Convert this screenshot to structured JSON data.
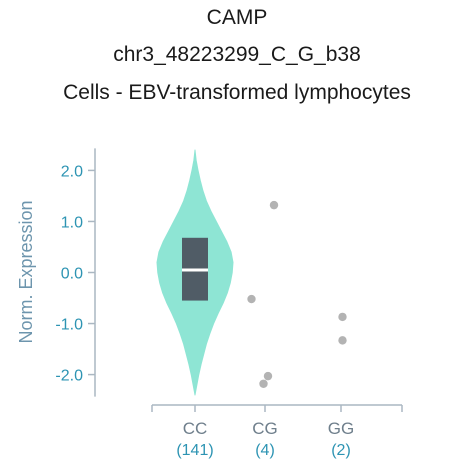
{
  "chart_data": {
    "type": "violin",
    "title_lines": [
      "CAMP",
      "chr3_48223299_C_G_b38",
      "Cells - EBV-transformed lymphocytes"
    ],
    "ylabel": "Norm. Expression",
    "ylim": [
      -2.4,
      2.4
    ],
    "yticks": [
      {
        "value": 2.0,
        "label": "2.0"
      },
      {
        "value": 1.0,
        "label": "1.0"
      },
      {
        "value": 0.0,
        "label": "0.0"
      },
      {
        "value": -1.0,
        "label": "-1.0"
      },
      {
        "value": -2.0,
        "label": "-2.0"
      }
    ],
    "colors": {
      "violin": "#8ee5d4",
      "box": "#505c66",
      "median": "#ffffff",
      "points": "#b3b3b3",
      "axis": "#aab7c2"
    },
    "groups": [
      {
        "label": "CC",
        "count_label": "(141)",
        "violin": {
          "min": -2.4,
          "max": 2.4,
          "profile": [
            [
              2.4,
              0.0
            ],
            [
              2.2,
              0.03
            ],
            [
              2.0,
              0.08
            ],
            [
              1.8,
              0.14
            ],
            [
              1.6,
              0.21
            ],
            [
              1.4,
              0.3
            ],
            [
              1.2,
              0.42
            ],
            [
              1.0,
              0.56
            ],
            [
              0.8,
              0.7
            ],
            [
              0.6,
              0.84
            ],
            [
              0.4,
              0.95
            ],
            [
              0.2,
              1.0
            ],
            [
              0.0,
              0.98
            ],
            [
              -0.2,
              0.93
            ],
            [
              -0.4,
              0.85
            ],
            [
              -0.6,
              0.74
            ],
            [
              -0.8,
              0.61
            ],
            [
              -1.0,
              0.49
            ],
            [
              -1.2,
              0.39
            ],
            [
              -1.4,
              0.3
            ],
            [
              -1.6,
              0.23
            ],
            [
              -1.8,
              0.16
            ],
            [
              -2.0,
              0.1
            ],
            [
              -2.2,
              0.05
            ],
            [
              -2.4,
              0.0
            ]
          ]
        },
        "box": {
          "q1": -0.55,
          "median": 0.05,
          "q3": 0.68
        },
        "points": []
      },
      {
        "label": "CG",
        "count_label": "(4)",
        "violin": null,
        "box": null,
        "points": [
          {
            "value": 1.32,
            "jitter": 0.3
          },
          {
            "value": -0.52,
            "jitter": -0.45
          },
          {
            "value": -2.03,
            "jitter": 0.1
          },
          {
            "value": -2.18,
            "jitter": -0.05
          }
        ]
      },
      {
        "label": "GG",
        "count_label": "(2)",
        "violin": null,
        "box": null,
        "points": [
          {
            "value": -0.87,
            "jitter": 0.05
          },
          {
            "value": -1.33,
            "jitter": 0.05
          }
        ]
      }
    ]
  }
}
